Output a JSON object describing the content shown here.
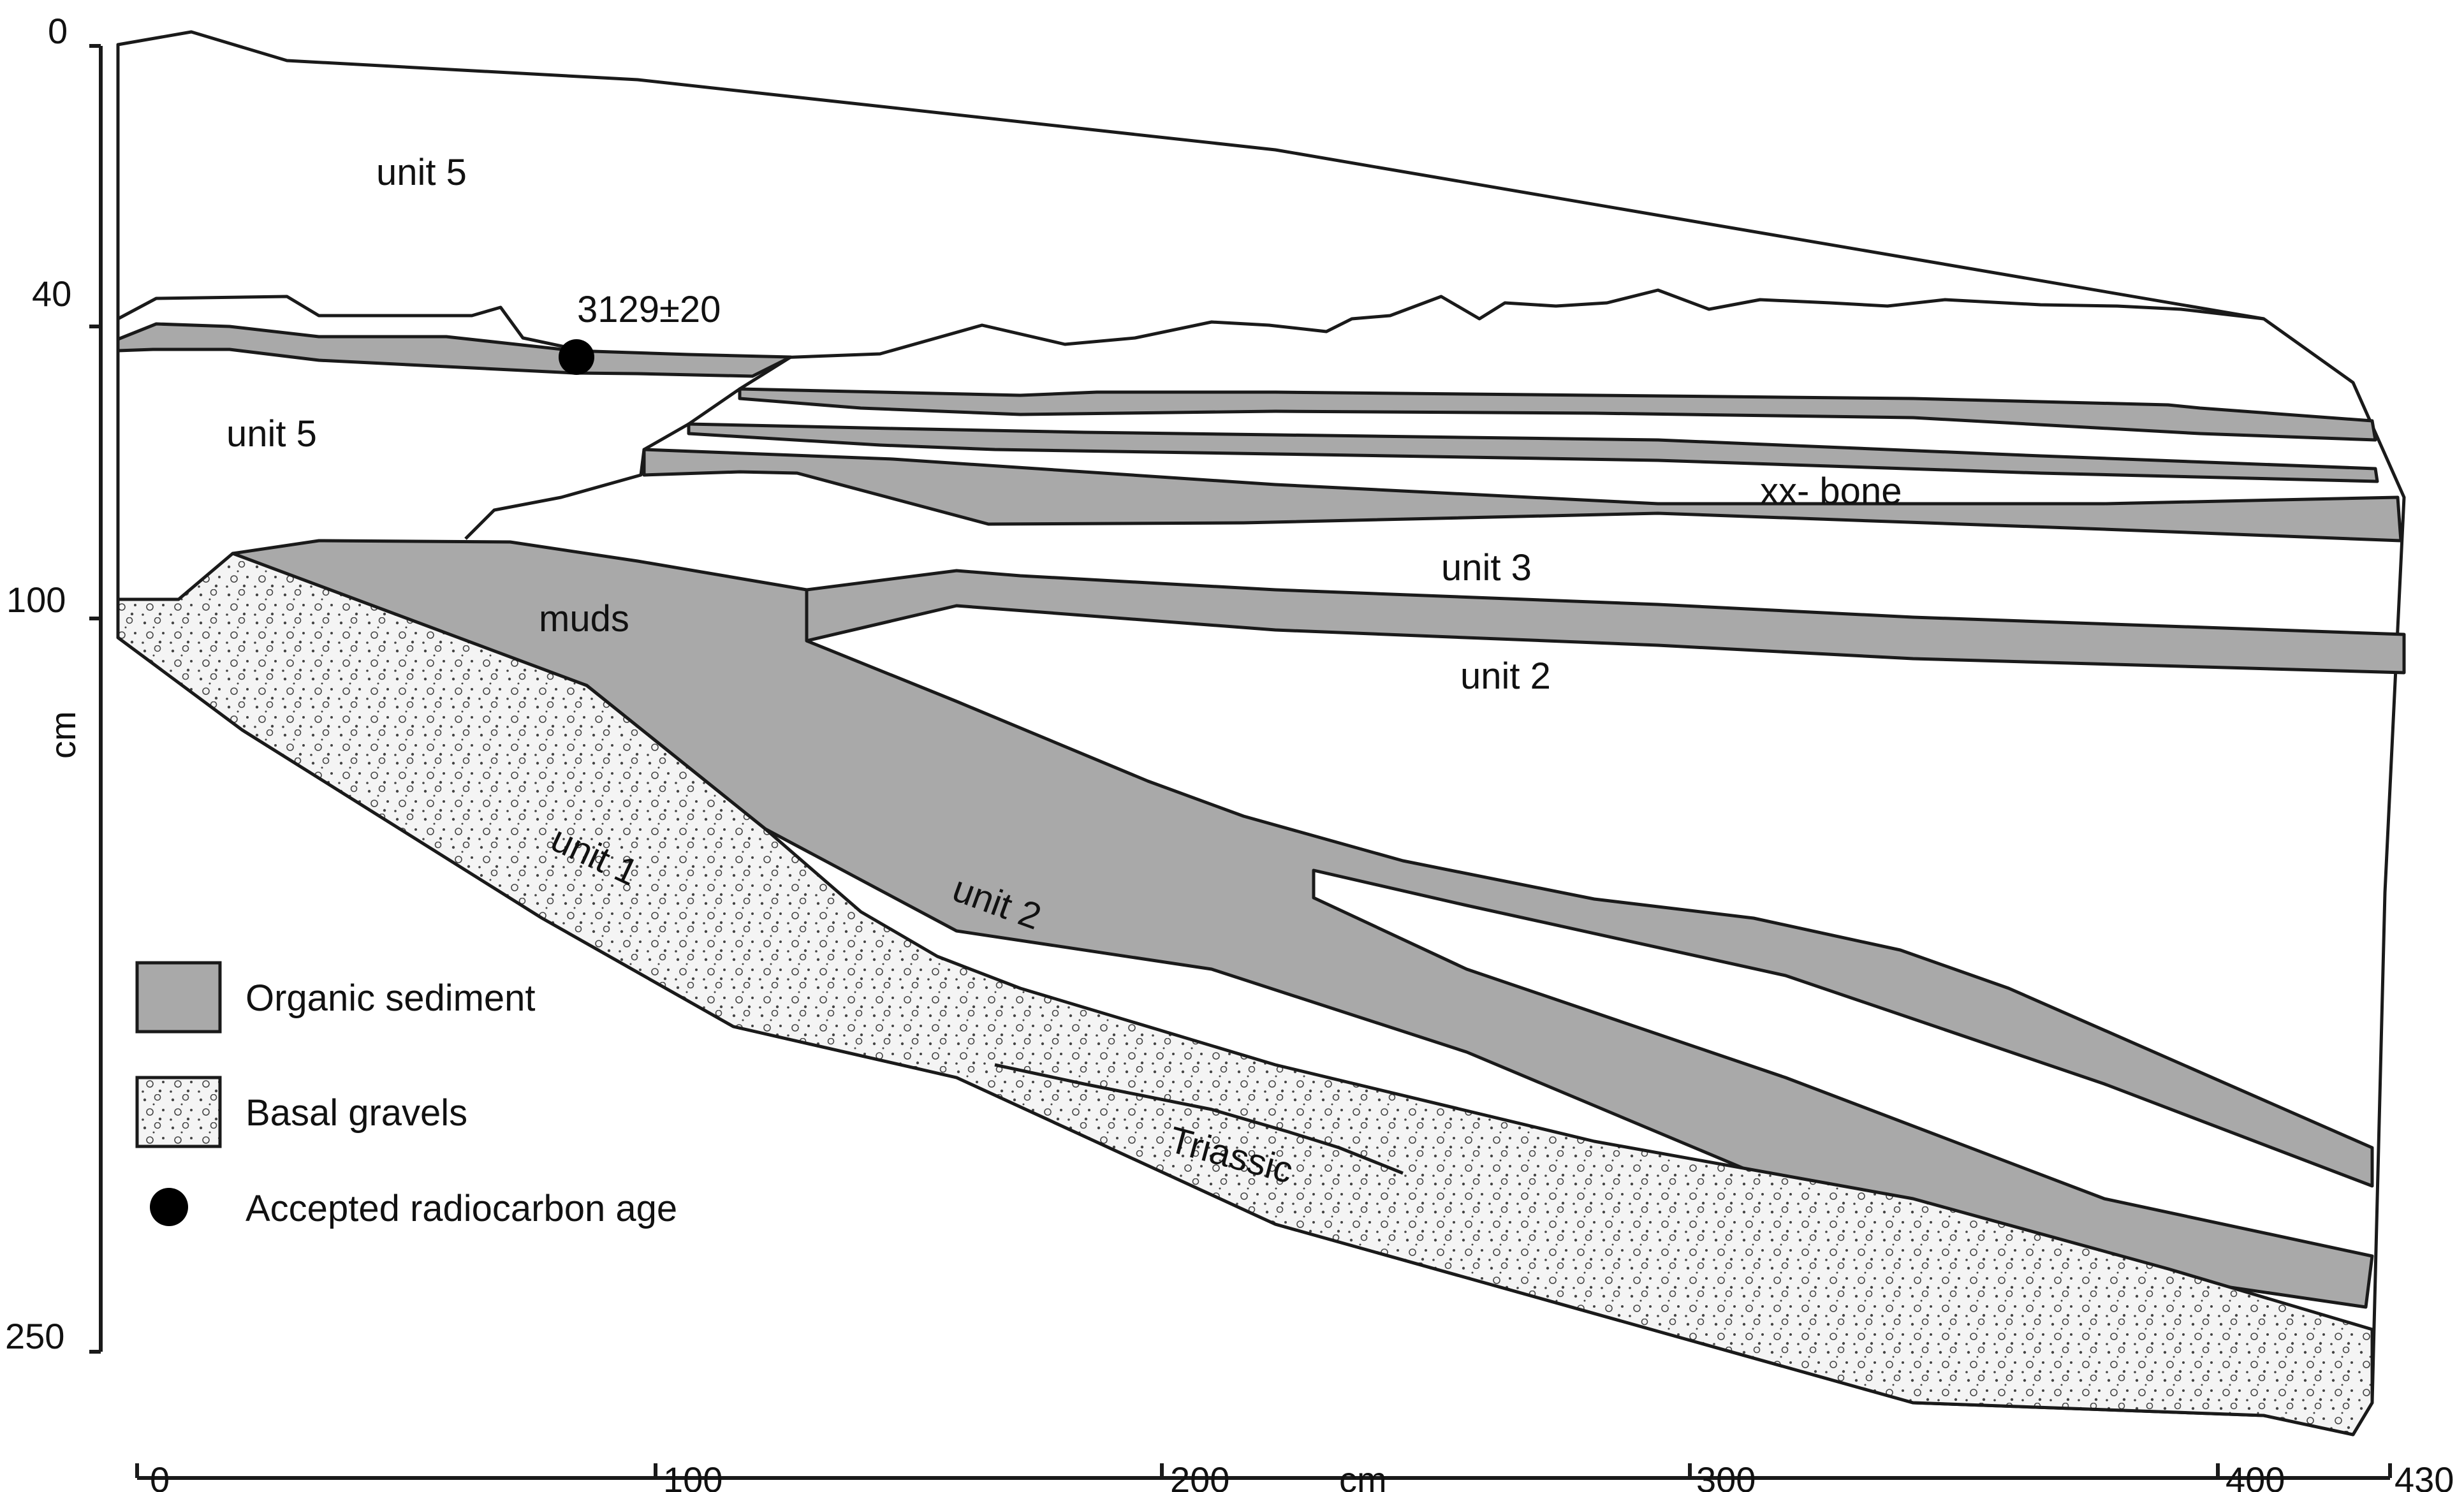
{
  "axes": {
    "depth": {
      "unit": "cm",
      "ticks": [
        "0",
        "40",
        "100",
        "250"
      ]
    },
    "distance": {
      "unit": "cm",
      "ticks": [
        "0",
        "100",
        "200",
        "300",
        "400",
        "430"
      ]
    }
  },
  "labels": {
    "unit5_top": "unit 5",
    "unit5_mid": "unit 5",
    "radiocarbon": "3129±20",
    "bone": "xx- bone",
    "unit3": "unit 3",
    "muds": "muds",
    "unit2_right": "unit 2",
    "unit1": "unit 1",
    "unit2_lower": "unit 2",
    "triassic": "Triassic"
  },
  "legend": [
    {
      "label": "Organic sediment",
      "swatch": "organic"
    },
    {
      "label": "Basal gravels",
      "swatch": "gravel"
    },
    {
      "label": "Accepted radiocarbon age",
      "swatch": "dot"
    }
  ],
  "colors": {
    "organic_sediment": "#a9a9a9",
    "outline": "#1a1a1a",
    "background": "#ffffff"
  }
}
